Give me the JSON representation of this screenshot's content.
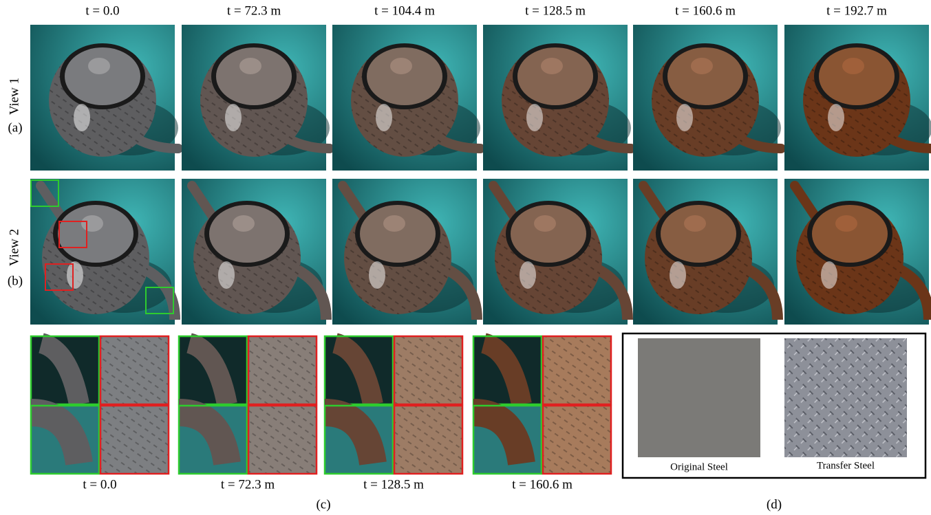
{
  "column_labels": [
    "t = 0.0",
    "t = 72.3 m",
    "t = 104.4 m",
    "t = 128.5 m",
    "t = 160.6 m",
    "t = 192.7 m"
  ],
  "rows": [
    {
      "name": "View 1",
      "label": "(a)"
    },
    {
      "name": "View 2",
      "label": "(b)"
    }
  ],
  "zoom": {
    "labels": [
      "t = 0.0",
      "t = 72.3 m",
      "t = 128.5 m",
      "t = 160.6 m"
    ],
    "caption": "(c)"
  },
  "materials": {
    "items": [
      "Original Steel",
      "Transfer Steel"
    ],
    "caption": "(d)"
  }
}
